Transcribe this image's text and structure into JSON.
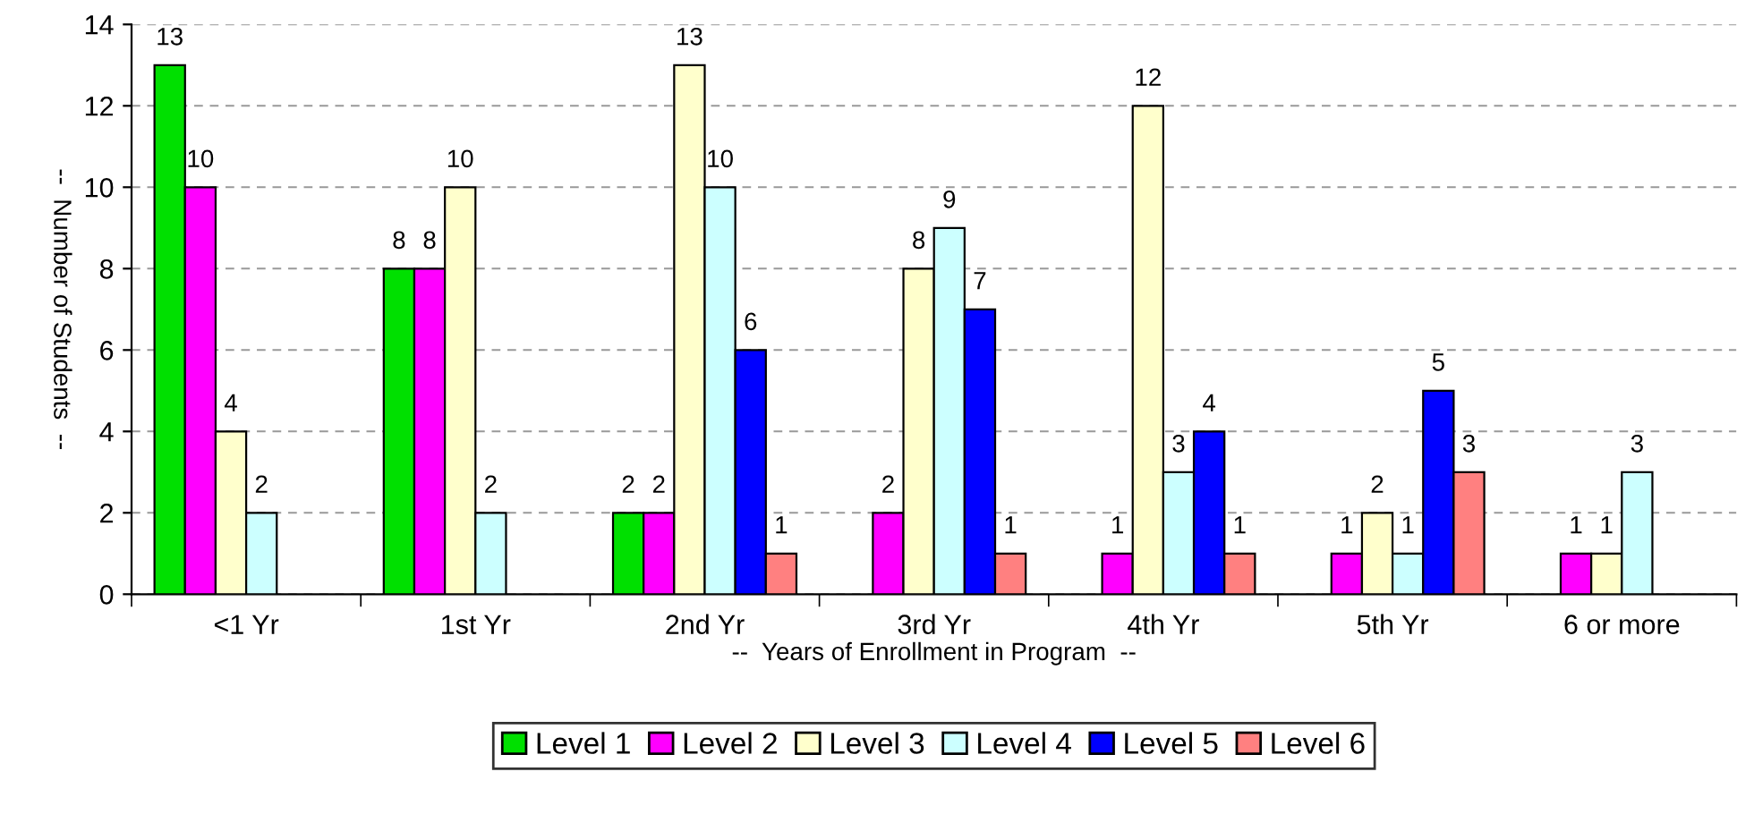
{
  "chart_data": {
    "type": "bar",
    "xlabel": "--  Years of Enrollment in Program  --",
    "ylabel": "--  Number of Students  --",
    "categories": [
      "<1 Yr",
      "1st Yr",
      "2nd Yr",
      "3rd Yr",
      "4th Yr",
      "5th Yr",
      "6 or more"
    ],
    "series": [
      {
        "name": "Level 1",
        "color": "#00e000",
        "values": [
          13,
          8,
          2,
          null,
          null,
          null,
          null
        ]
      },
      {
        "name": "Level 2",
        "color": "#ff00ff",
        "values": [
          10,
          8,
          2,
          2,
          1,
          1,
          1
        ]
      },
      {
        "name": "Level 3",
        "color": "#ffffcc",
        "values": [
          4,
          10,
          13,
          8,
          12,
          2,
          1
        ]
      },
      {
        "name": "Level 4",
        "color": "#ccffff",
        "values": [
          2,
          2,
          10,
          9,
          3,
          1,
          3
        ]
      },
      {
        "name": "Level 5",
        "color": "#0000ff",
        "values": [
          null,
          null,
          6,
          7,
          4,
          5,
          null
        ]
      },
      {
        "name": "Level 6",
        "color": "#ff8080",
        "values": [
          null,
          null,
          1,
          1,
          1,
          3,
          null
        ]
      }
    ],
    "ylim": [
      0,
      14
    ],
    "yticks": [
      0,
      2,
      4,
      6,
      8,
      10,
      12,
      14
    ],
    "grid": "y",
    "legend": "bottom",
    "data_labels": true
  }
}
